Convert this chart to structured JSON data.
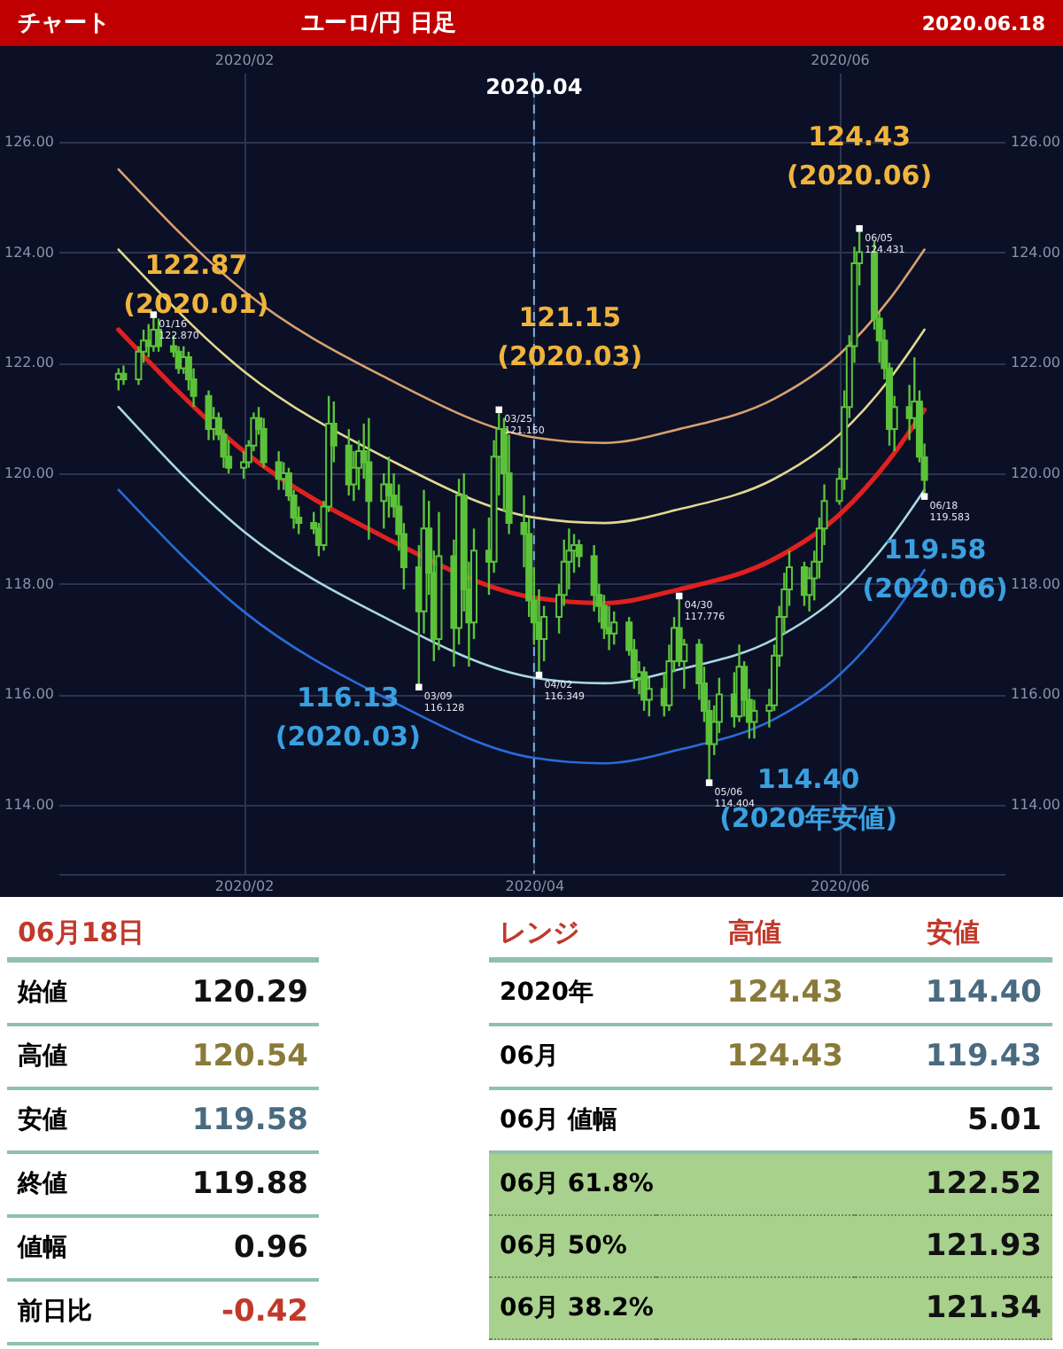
{
  "chart_data": [
    {
      "type": "candlestick",
      "title": "チャート",
      "subtitle": "ユーロ/円 日足",
      "color": "#5cc23a",
      "grid": true,
      "xlim": [
        "2019-12-28",
        "2020-07-04"
      ],
      "ylim": [
        112.75,
        127.25
      ],
      "xticks": [
        {
          "value": "2020-02-03",
          "label": "2020/02"
        },
        {
          "value": "2020-04-01",
          "label": "2020/04"
        },
        {
          "value": "2020-06-01",
          "label": "2020/06"
        }
      ],
      "x2lim": [
        "2019-12-28",
        "2020-07-04"
      ],
      "x2ticks": [
        {
          "value": "2020-02-03",
          "label": "2020/02"
        },
        {
          "value": "2020-06-01",
          "label": "2020/06"
        }
      ],
      "yticks": [
        {
          "value": 114,
          "label": "114.00"
        },
        {
          "value": 116,
          "label": "116.00"
        },
        {
          "value": 118,
          "label": "118.00"
        },
        {
          "value": 120,
          "label": "120.00"
        },
        {
          "value": 122,
          "label": "122.00"
        },
        {
          "value": 124,
          "label": "124.00"
        },
        {
          "value": 126,
          "label": "126.00"
        }
      ],
      "y2lim": [
        112.75,
        127.25
      ],
      "y2ticks": [
        {
          "value": 114,
          "label": "114.00"
        },
        {
          "value": 116,
          "label": "116.00"
        },
        {
          "value": 118,
          "label": "118.00"
        },
        {
          "value": 120,
          "label": "120.00"
        },
        {
          "value": 122,
          "label": "122.00"
        },
        {
          "value": 124,
          "label": "124.00"
        },
        {
          "value": 126,
          "label": "126.00"
        }
      ],
      "x": [
        "2020-01-09",
        "2020-01-10",
        "2020-01-13",
        "2020-01-14",
        "2020-01-15",
        "2020-01-16",
        "2020-01-17",
        "2020-01-20",
        "2020-01-21",
        "2020-01-22",
        "2020-01-23",
        "2020-01-24",
        "2020-01-27",
        "2020-01-28",
        "2020-01-29",
        "2020-01-30",
        "2020-01-31",
        "2020-02-03",
        "2020-02-04",
        "2020-02-05",
        "2020-02-06",
        "2020-02-07",
        "2020-02-10",
        "2020-02-11",
        "2020-02-12",
        "2020-02-13",
        "2020-02-14",
        "2020-02-17",
        "2020-02-18",
        "2020-02-19",
        "2020-02-20",
        "2020-02-21",
        "2020-02-24",
        "2020-02-25",
        "2020-02-26",
        "2020-02-27",
        "2020-02-28",
        "2020-03-02",
        "2020-03-03",
        "2020-03-04",
        "2020-03-05",
        "2020-03-06",
        "2020-03-09",
        "2020-03-10",
        "2020-03-11",
        "2020-03-12",
        "2020-03-13",
        "2020-03-16",
        "2020-03-17",
        "2020-03-18",
        "2020-03-19",
        "2020-03-20",
        "2020-03-23",
        "2020-03-24",
        "2020-03-25",
        "2020-03-26",
        "2020-03-27",
        "2020-03-30",
        "2020-03-31",
        "2020-04-01",
        "2020-04-02",
        "2020-04-03",
        "2020-04-06",
        "2020-04-07",
        "2020-04-08",
        "2020-04-09",
        "2020-04-10",
        "2020-04-13",
        "2020-04-14",
        "2020-04-15",
        "2020-04-16",
        "2020-04-17",
        "2020-04-20",
        "2020-04-21",
        "2020-04-22",
        "2020-04-23",
        "2020-04-24",
        "2020-04-27",
        "2020-04-28",
        "2020-04-29",
        "2020-04-30",
        "2020-05-01",
        "2020-05-04",
        "2020-05-05",
        "2020-05-06",
        "2020-05-07",
        "2020-05-08",
        "2020-05-11",
        "2020-05-12",
        "2020-05-13",
        "2020-05-14",
        "2020-05-15",
        "2020-05-18",
        "2020-05-19",
        "2020-05-20",
        "2020-05-21",
        "2020-05-22",
        "2020-05-25",
        "2020-05-26",
        "2020-05-27",
        "2020-05-28",
        "2020-05-29",
        "2020-06-01",
        "2020-06-02",
        "2020-06-03",
        "2020-06-04",
        "2020-06-05",
        "2020-06-08",
        "2020-06-09",
        "2020-06-10",
        "2020-06-11",
        "2020-06-12",
        "2020-06-15",
        "2020-06-16",
        "2020-06-17",
        "2020-06-18"
      ],
      "ohlc": [
        [
          121.7,
          121.9,
          121.5,
          121.8
        ],
        [
          121.8,
          121.95,
          121.6,
          121.7
        ],
        [
          121.7,
          122.3,
          121.6,
          122.2
        ],
        [
          122.2,
          122.6,
          122.0,
          122.4
        ],
        [
          122.4,
          122.7,
          122.1,
          122.3
        ],
        [
          122.3,
          122.87,
          122.2,
          122.6
        ],
        [
          122.6,
          122.8,
          122.2,
          122.3
        ],
        [
          122.3,
          122.5,
          122.1,
          122.2
        ],
        [
          122.2,
          122.3,
          121.8,
          121.9
        ],
        [
          121.9,
          122.3,
          121.8,
          122.1
        ],
        [
          122.1,
          122.2,
          121.5,
          121.7
        ],
        [
          121.7,
          121.9,
          121.2,
          121.4
        ],
        [
          121.4,
          121.5,
          120.6,
          120.8
        ],
        [
          120.8,
          121.2,
          120.6,
          121.0
        ],
        [
          121.0,
          121.1,
          120.6,
          120.7
        ],
        [
          120.7,
          120.8,
          120.1,
          120.3
        ],
        [
          120.3,
          120.6,
          120.0,
          120.1
        ],
        [
          120.1,
          120.4,
          119.9,
          120.2
        ],
        [
          120.2,
          120.6,
          120.1,
          120.5
        ],
        [
          120.5,
          121.1,
          120.4,
          121.0
        ],
        [
          121.0,
          121.2,
          120.7,
          120.8
        ],
        [
          120.8,
          121.0,
          120.1,
          120.2
        ],
        [
          120.2,
          120.4,
          119.7,
          119.9
        ],
        [
          119.9,
          120.2,
          119.7,
          120.0
        ],
        [
          120.0,
          120.1,
          119.5,
          119.6
        ],
        [
          119.6,
          119.7,
          119.0,
          119.2
        ],
        [
          119.2,
          119.4,
          118.9,
          119.1
        ],
        [
          119.1,
          119.3,
          118.9,
          119.0
        ],
        [
          119.0,
          119.1,
          118.5,
          118.7
        ],
        [
          118.7,
          119.5,
          118.6,
          119.4
        ],
        [
          119.4,
          121.4,
          119.3,
          120.9
        ],
        [
          120.9,
          121.3,
          120.2,
          120.5
        ],
        [
          120.5,
          120.8,
          119.6,
          119.8
        ],
        [
          119.8,
          120.4,
          119.5,
          120.1
        ],
        [
          120.1,
          120.6,
          119.7,
          120.4
        ],
        [
          120.4,
          120.9,
          119.9,
          120.2
        ],
        [
          120.2,
          121.0,
          118.8,
          119.5
        ],
        [
          119.5,
          120.0,
          119.0,
          119.8
        ],
        [
          119.8,
          120.3,
          119.2,
          119.6
        ],
        [
          119.6,
          120.0,
          119.2,
          119.4
        ],
        [
          119.4,
          119.8,
          118.6,
          118.9
        ],
        [
          118.9,
          119.1,
          117.9,
          118.3
        ],
        [
          118.3,
          118.7,
          116.13,
          117.5
        ],
        [
          117.5,
          119.7,
          117.1,
          119.0
        ],
        [
          119.0,
          119.5,
          117.8,
          118.2
        ],
        [
          118.2,
          118.6,
          116.6,
          117.0
        ],
        [
          117.0,
          119.3,
          116.8,
          118.5
        ],
        [
          118.5,
          118.8,
          116.5,
          117.2
        ],
        [
          117.2,
          119.9,
          116.9,
          119.6
        ],
        [
          119.6,
          120.0,
          117.5,
          117.9
        ],
        [
          117.9,
          118.4,
          116.5,
          117.3
        ],
        [
          117.3,
          119.0,
          117.0,
          118.6
        ],
        [
          118.6,
          119.2,
          117.8,
          118.4
        ],
        [
          118.4,
          120.6,
          118.2,
          120.3
        ],
        [
          120.3,
          121.15,
          119.6,
          120.8
        ],
        [
          120.8,
          121.0,
          119.3,
          120.0
        ],
        [
          120.0,
          120.7,
          118.9,
          119.1
        ],
        [
          119.1,
          119.6,
          118.3,
          118.9
        ],
        [
          118.9,
          119.2,
          117.4,
          117.7
        ],
        [
          117.7,
          118.3,
          116.9,
          117.3
        ],
        [
          117.3,
          117.9,
          116.35,
          117.0
        ],
        [
          117.0,
          117.6,
          116.6,
          117.4
        ],
        [
          117.4,
          118.0,
          117.1,
          117.8
        ],
        [
          117.8,
          118.8,
          117.6,
          118.4
        ],
        [
          118.4,
          119.0,
          117.9,
          118.6
        ],
        [
          118.6,
          118.9,
          118.2,
          118.7
        ],
        [
          118.7,
          118.8,
          118.3,
          118.5
        ],
        [
          118.5,
          118.7,
          117.5,
          117.8
        ],
        [
          117.8,
          118.0,
          117.3,
          117.6
        ],
        [
          117.6,
          117.8,
          117.0,
          117.2
        ],
        [
          117.2,
          117.6,
          116.8,
          117.1
        ],
        [
          117.1,
          117.5,
          116.9,
          117.3
        ],
        [
          117.3,
          117.4,
          116.7,
          116.8
        ],
        [
          116.8,
          117.0,
          116.1,
          116.3
        ],
        [
          116.3,
          116.6,
          116.0,
          116.4
        ],
        [
          116.4,
          116.5,
          115.7,
          115.9
        ],
        [
          115.9,
          116.3,
          115.6,
          116.1
        ],
        [
          116.1,
          116.4,
          115.6,
          115.8
        ],
        [
          115.8,
          116.9,
          115.7,
          116.6
        ],
        [
          116.6,
          117.4,
          116.4,
          117.2
        ],
        [
          117.2,
          117.78,
          116.5,
          116.6
        ],
        [
          116.6,
          117.0,
          116.1,
          116.9
        ],
        [
          116.9,
          117.0,
          115.9,
          116.2
        ],
        [
          116.2,
          116.5,
          115.5,
          115.7
        ],
        [
          115.7,
          115.9,
          114.4,
          115.1
        ],
        [
          115.1,
          115.8,
          114.9,
          115.5
        ],
        [
          115.5,
          116.3,
          115.3,
          116.0
        ],
        [
          116.0,
          116.4,
          115.4,
          115.6
        ],
        [
          115.6,
          116.9,
          115.5,
          116.5
        ],
        [
          116.5,
          116.6,
          115.6,
          115.9
        ],
        [
          115.9,
          116.1,
          115.2,
          115.5
        ],
        [
          115.5,
          115.9,
          115.2,
          115.7
        ],
        [
          115.7,
          116.1,
          115.4,
          115.8
        ],
        [
          115.8,
          116.9,
          115.7,
          116.7
        ],
        [
          116.7,
          117.6,
          116.5,
          117.4
        ],
        [
          117.4,
          118.2,
          117.1,
          117.9
        ],
        [
          117.9,
          118.6,
          117.6,
          118.3
        ],
        [
          118.3,
          118.4,
          117.6,
          117.8
        ],
        [
          117.8,
          118.3,
          117.5,
          118.1
        ],
        [
          118.1,
          118.6,
          117.7,
          118.4
        ],
        [
          118.4,
          119.2,
          118.1,
          119.0
        ],
        [
          119.0,
          119.8,
          118.7,
          119.5
        ],
        [
          119.5,
          120.1,
          119.43,
          119.9
        ],
        [
          119.9,
          121.5,
          119.7,
          121.2
        ],
        [
          121.2,
          122.5,
          121.0,
          122.3
        ],
        [
          122.3,
          124.1,
          122.0,
          123.8
        ],
        [
          123.8,
          124.43,
          123.4,
          124.0
        ],
        [
          124.0,
          124.2,
          122.6,
          122.8
        ],
        [
          122.8,
          122.9,
          122.0,
          122.4
        ],
        [
          122.4,
          122.6,
          121.7,
          121.9
        ],
        [
          121.9,
          122.0,
          120.5,
          120.8
        ],
        [
          120.8,
          121.4,
          120.4,
          121.2
        ],
        [
          121.2,
          121.6,
          120.6,
          121.0
        ],
        [
          121.0,
          122.1,
          120.8,
          121.3
        ],
        [
          121.3,
          121.5,
          120.2,
          120.3
        ],
        [
          120.29,
          120.54,
          119.58,
          119.88
        ]
      ],
      "series": [
        {
          "type": "line",
          "color": "#d8a070",
          "x": [
            "2020-01-09",
            "2020-02-03",
            "2020-03-02",
            "2020-04-01",
            "2020-04-15",
            "2020-04-30",
            "2020-05-19",
            "2020-06-01",
            "2020-06-11",
            "2020-06-18"
          ],
          "values": [
            125.5,
            123.3,
            121.75,
            120.65,
            120.55,
            120.8,
            121.35,
            122.15,
            123.15,
            124.05
          ]
        },
        {
          "type": "line",
          "color": "#e0d890",
          "x": [
            "2020-01-09",
            "2020-02-03",
            "2020-03-02",
            "2020-04-01",
            "2020-04-15",
            "2020-04-30",
            "2020-05-19",
            "2020-06-01",
            "2020-06-11",
            "2020-06-18"
          ],
          "values": [
            124.05,
            121.85,
            120.3,
            119.2,
            119.1,
            119.35,
            119.9,
            120.7,
            121.7,
            122.6
          ]
        },
        {
          "type": "line",
          "color": "#e02020",
          "x": [
            "2020-01-09",
            "2020-02-03",
            "2020-03-02",
            "2020-04-01",
            "2020-04-15",
            "2020-04-30",
            "2020-05-19",
            "2020-06-01",
            "2020-06-11",
            "2020-06-18"
          ],
          "values": [
            122.6,
            120.4,
            118.85,
            117.75,
            117.65,
            117.9,
            118.45,
            119.25,
            120.25,
            121.15
          ]
        },
        {
          "type": "line",
          "color": "#a8d8e0",
          "x": [
            "2020-01-09",
            "2020-02-03",
            "2020-03-02",
            "2020-04-01",
            "2020-04-15",
            "2020-04-30",
            "2020-05-19",
            "2020-06-01",
            "2020-06-11",
            "2020-06-18"
          ],
          "values": [
            121.2,
            118.95,
            117.4,
            116.3,
            116.2,
            116.45,
            117.0,
            117.8,
            118.8,
            119.7
          ]
        },
        {
          "type": "line",
          "color": "#2a6ad8",
          "x": [
            "2020-01-09",
            "2020-02-03",
            "2020-03-02",
            "2020-04-01",
            "2020-04-15",
            "2020-04-30",
            "2020-05-19",
            "2020-06-01",
            "2020-06-11",
            "2020-06-18"
          ],
          "values": [
            119.7,
            117.5,
            115.95,
            114.85,
            114.75,
            115.0,
            115.55,
            116.35,
            117.35,
            118.25
          ]
        },
        {
          "type": "scatter",
          "color": "#ffffff",
          "marker": "square",
          "x": [
            "2020-01-16",
            "2020-03-09",
            "2020-03-25",
            "2020-04-02",
            "2020-04-30",
            "2020-05-06",
            "2020-06-05",
            "2020-06-18"
          ],
          "values": [
            122.87,
            116.13,
            121.15,
            116.35,
            117.78,
            114.4,
            124.43,
            119.58
          ]
        }
      ],
      "ref_lines": [
        {
          "axis": "x",
          "value": "2020-04-01",
          "label": "2020.04",
          "color": "#7fb0e0",
          "line_style": "dashed"
        }
      ],
      "annotations": [
        "2020.06.18",
        {
          "text": "122.87 (2020.01)",
          "x": "2020-01-16",
          "y": 122.87
        },
        {
          "text": "121.15 (2020.03)",
          "x": "2020-03-25",
          "y": 121.15
        },
        {
          "text": "116.13 (2020.03)",
          "x": "2020-03-09",
          "y": 116.13
        },
        {
          "text": "124.43 (2020.06)",
          "x": "2020-06-05",
          "y": 124.43
        },
        {
          "text": "119.58 (2020.06)",
          "x": "2020-06-18",
          "y": 119.58
        },
        {
          "text": "114.40 (2020年安値)",
          "x": "2020-05-06",
          "y": 114.4
        },
        {
          "text": "01/16 122.870",
          "x": "2020-01-16",
          "y": 122.87
        },
        {
          "text": "03/09 116.128",
          "x": "2020-03-09",
          "y": 116.13
        },
        {
          "text": "03/25 121.150",
          "x": "2020-03-25",
          "y": 121.15
        },
        {
          "text": "04/02 116.349",
          "x": "2020-04-02",
          "y": 116.35
        },
        {
          "text": "04/30 117.776",
          "x": "2020-04-30",
          "y": 117.78
        },
        {
          "text": "05/06 114.404",
          "x": "2020-05-06",
          "y": 114.4
        },
        {
          "text": "06/05 124.431",
          "x": "2020-06-05",
          "y": 124.43
        },
        {
          "text": "06/18 119.583",
          "x": "2020-06-18",
          "y": 119.58
        }
      ]
    },
    {
      "type": "other",
      "title": "06月18日",
      "annotations": [
        "始値",
        "120.29",
        "高値",
        "120.54",
        "安値",
        "119.58",
        "終値",
        "119.88",
        "値幅",
        "0.96",
        "前日比",
        "-0.42"
      ]
    },
    {
      "type": "other",
      "title": "レンジ",
      "annotations": [
        "高値",
        "安値",
        "2020年",
        "124.43",
        "114.40",
        "06月",
        "124.43",
        "119.43",
        "06月 値幅",
        null,
        "5.01",
        "06月  61.8%",
        null,
        "122.52",
        "06月  50%",
        null,
        "121.93",
        "06月  38.2%",
        null,
        "121.34"
      ]
    }
  ]
}
